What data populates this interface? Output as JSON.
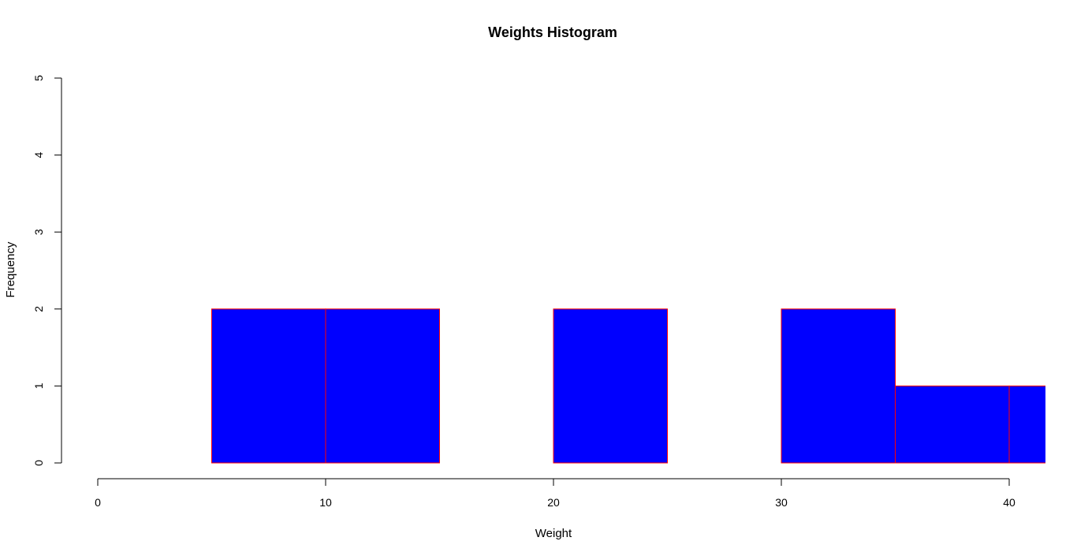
{
  "chart_data": {
    "type": "bar",
    "title": "Weights Histogram",
    "xlabel": "Weight",
    "ylabel": "Frequency",
    "xlim": [
      0,
      42
    ],
    "ylim": [
      0,
      5
    ],
    "x_ticks": [
      0,
      10,
      20,
      30,
      40
    ],
    "y_ticks": [
      0,
      1,
      2,
      3,
      4,
      5
    ],
    "bins": [
      {
        "x0": 5,
        "x1": 10,
        "count": 2
      },
      {
        "x0": 10,
        "x1": 15,
        "count": 2
      },
      {
        "x0": 15,
        "x1": 20,
        "count": 0
      },
      {
        "x0": 20,
        "x1": 25,
        "count": 2
      },
      {
        "x0": 25,
        "x1": 30,
        "count": 0
      },
      {
        "x0": 30,
        "x1": 35,
        "count": 2
      },
      {
        "x0": 35,
        "x1": 40,
        "count": 1
      },
      {
        "x0": 40,
        "x1": 45,
        "count": 1
      }
    ],
    "bar_fill": "#0000ff",
    "bar_border": "#ff0000",
    "axis_color": "#000000",
    "grid": false,
    "legend": "none"
  }
}
